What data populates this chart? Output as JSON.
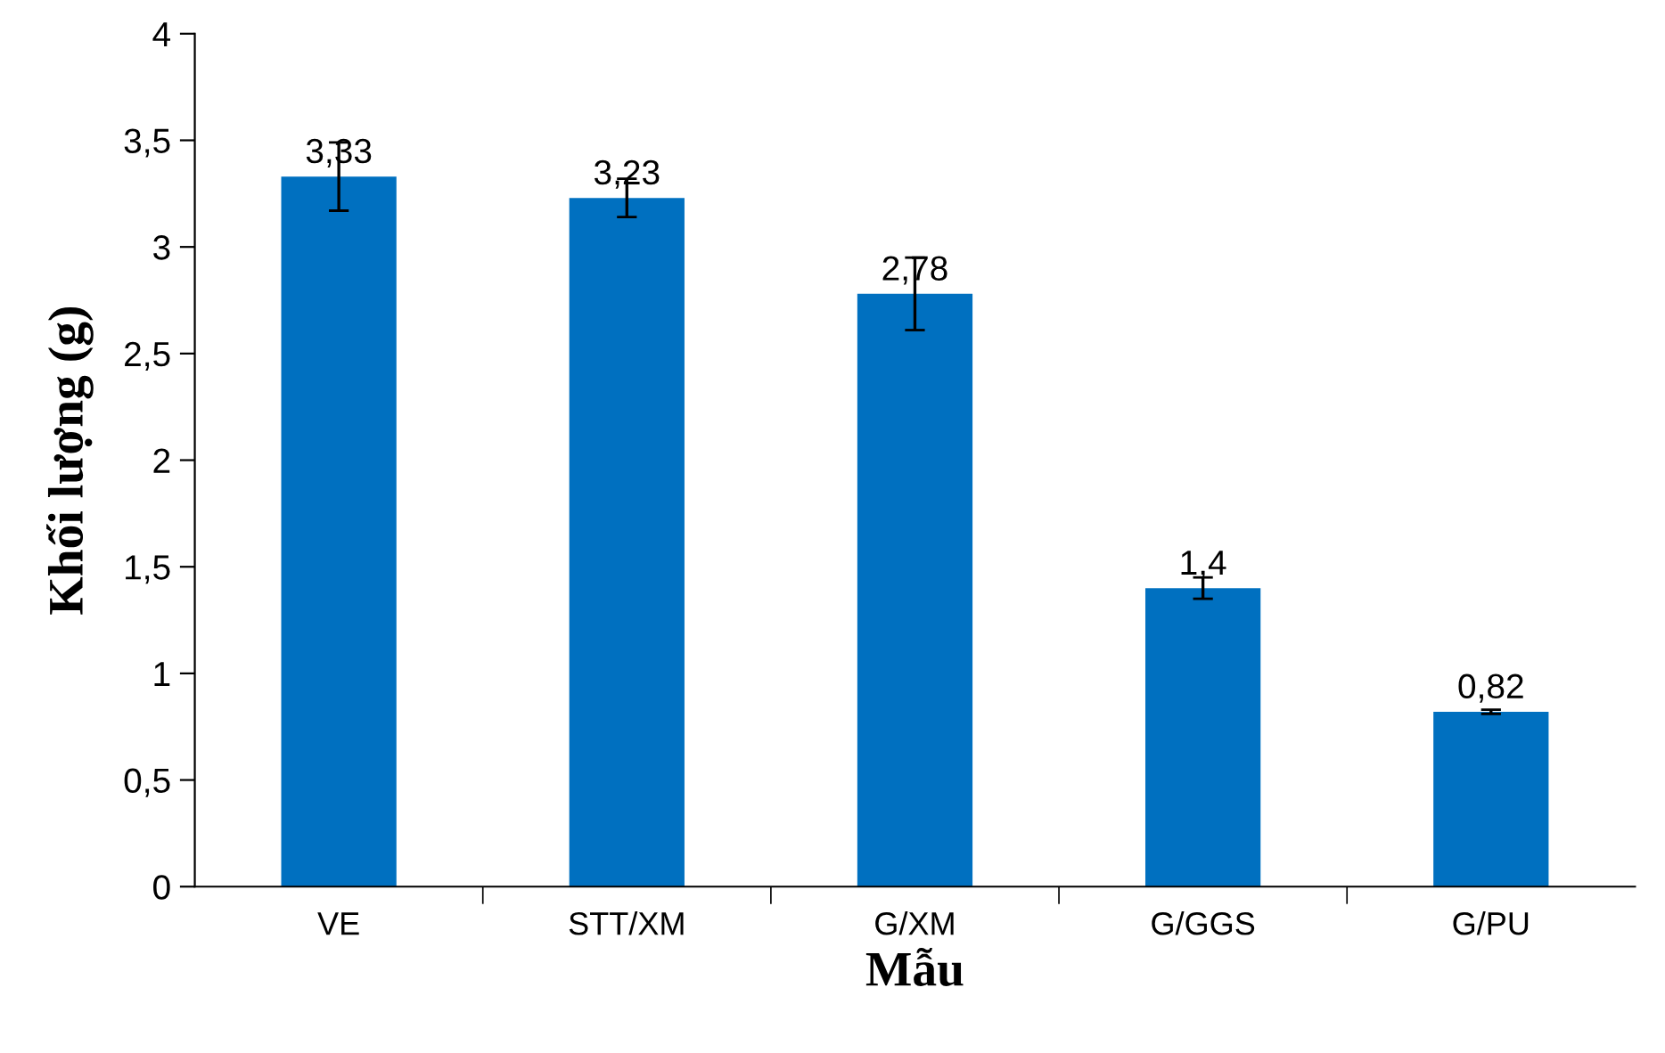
{
  "chart_data": {
    "type": "bar",
    "xlabel": "Mẫu",
    "ylabel": "Khối lượng (g)",
    "categories": [
      "VE",
      "STT/XM",
      "G/XM",
      "G/GGS",
      "G/PU"
    ],
    "values": [
      3.33,
      3.23,
      2.78,
      1.4,
      0.82
    ],
    "errors": [
      0.16,
      0.09,
      0.17,
      0.05,
      0.01
    ],
    "value_labels": [
      "3,33",
      "3,23",
      "2,78",
      "1,4",
      "0,82"
    ],
    "color": "#0070c0",
    "ylim": [
      0,
      4
    ],
    "yticks": [
      0,
      {
        "value": 0.5,
        "label": "0,5"
      },
      1,
      {
        "value": 1.5,
        "label": "1,5"
      },
      2,
      {
        "value": 2.5,
        "label": "2,5"
      },
      3,
      {
        "value": 3.5,
        "label": "3,5"
      },
      4
    ],
    "grid": false,
    "legend": false
  }
}
